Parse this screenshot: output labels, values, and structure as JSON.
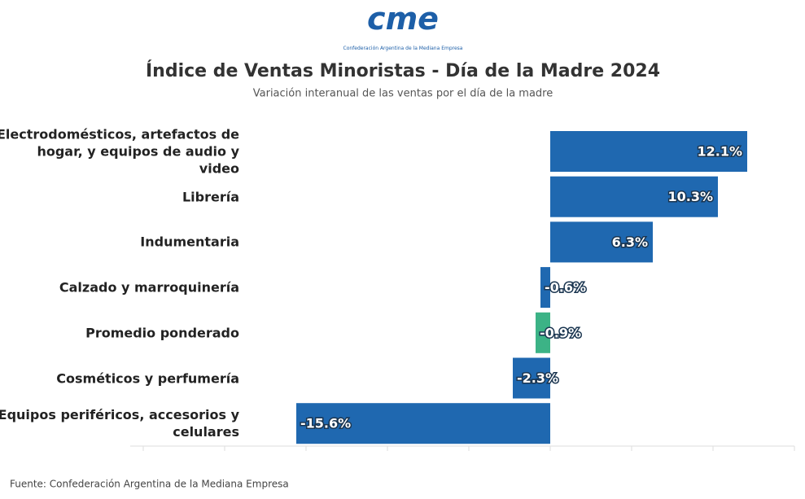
{
  "logo": {
    "text": "cme",
    "caption": "Confederación Argentina de la Mediana Empresa"
  },
  "chart_data": {
    "type": "hbar",
    "title": "Índice de Ventas Minoristas - Día de la Madre 2024",
    "subtitle": "Variación interanual de las ventas por el día de la madre",
    "categories": [
      "Electrodomésticos, artefactos de hogar, y equipos de audio y video",
      "Librería",
      "Indumentaria",
      "Calzado y marroquinería",
      "Promedio ponderado",
      "Cosméticos y perfumería",
      "Equipos periféricos, accesorios y celulares"
    ],
    "values": [
      12.1,
      10.3,
      6.3,
      -0.6,
      -0.9,
      -2.3,
      -15.6
    ],
    "value_labels": [
      "12.1%",
      "10.3%",
      "6.3%",
      "-0.6%",
      "-0.9%",
      "-2.3%",
      "-15.6%"
    ],
    "colors": [
      "#1f68b0",
      "#1f68b0",
      "#1f68b0",
      "#1f68b0",
      "#3cb386",
      "#1f68b0",
      "#1f68b0"
    ],
    "xlim": [
      -25,
      15
    ],
    "xticks": [
      -25,
      -20,
      -15,
      -10,
      -5,
      0,
      5,
      10,
      15
    ],
    "grid": false,
    "source": "Fuente: Confederación Argentina de la Mediana Empresa"
  }
}
